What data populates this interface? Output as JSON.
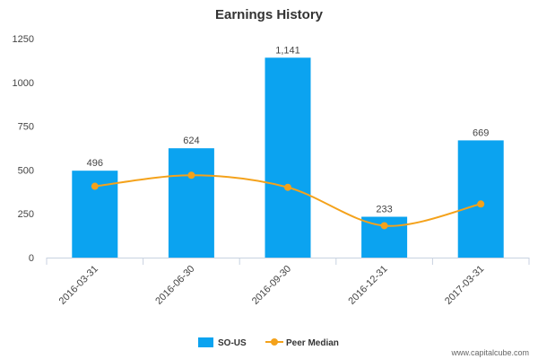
{
  "chart_data": {
    "type": "bar",
    "title": "Earnings History",
    "xlabel": "",
    "ylabel": "",
    "categories": [
      "2016-03-31",
      "2016-06-30",
      "2016-09-30",
      "2016-12-31",
      "2017-03-31"
    ],
    "series": [
      {
        "name": "SO-US",
        "type": "bar",
        "values": [
          496,
          624,
          1141,
          233,
          669
        ],
        "data_labels": [
          "496",
          "624",
          "1,141",
          "233",
          "669"
        ],
        "color": "#0ba3f0"
      },
      {
        "name": "Peer Median",
        "type": "line",
        "smooth": true,
        "values": [
          407,
          470,
          401,
          182,
          306
        ],
        "color": "#f4a21b"
      }
    ],
    "ylim": [
      0,
      1250
    ],
    "yticks": [
      0,
      250,
      500,
      750,
      1000,
      1250
    ],
    "ytick_labels": [
      "0",
      "250",
      "500",
      "750",
      "1000",
      "1250"
    ],
    "grid": false,
    "legend_position": "bottom"
  },
  "watermark": "www.capitalcube.com"
}
